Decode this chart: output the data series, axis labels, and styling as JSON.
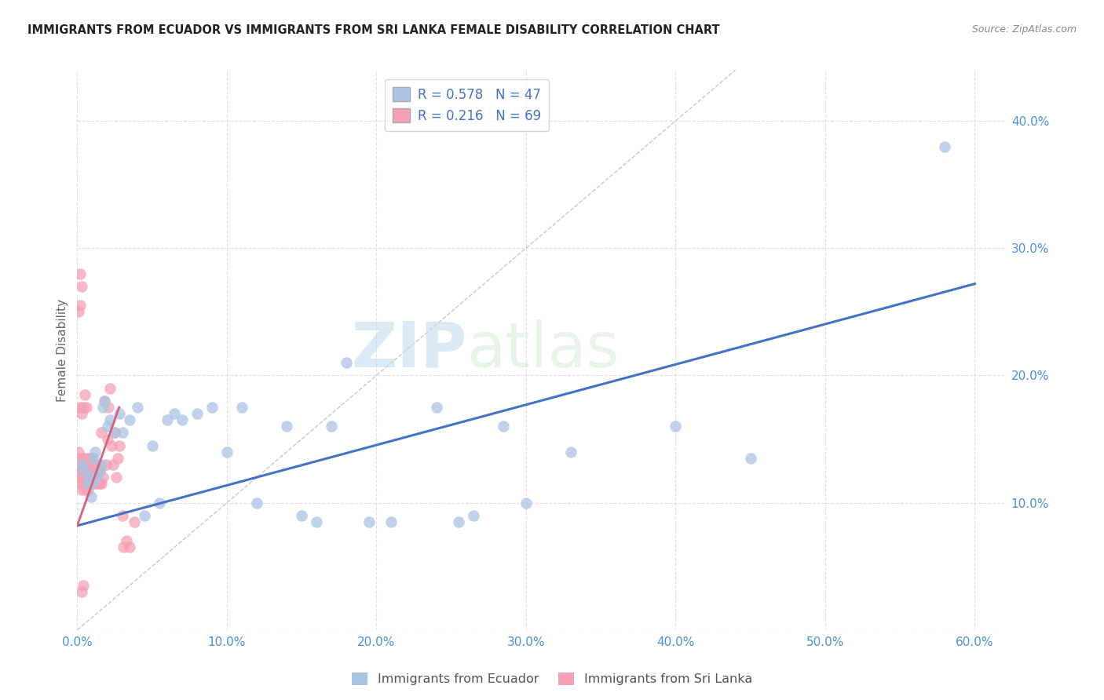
{
  "title": "IMMIGRANTS FROM ECUADOR VS IMMIGRANTS FROM SRI LANKA FEMALE DISABILITY CORRELATION CHART",
  "source": "Source: ZipAtlas.com",
  "ylabel": "Female Disability",
  "xlim": [
    0.0,
    0.62
  ],
  "ylim": [
    0.0,
    0.44
  ],
  "xticks": [
    0.0,
    0.1,
    0.2,
    0.3,
    0.4,
    0.5,
    0.6
  ],
  "yticks": [
    0.0,
    0.1,
    0.2,
    0.3,
    0.4
  ],
  "xtick_labels": [
    "0.0%",
    "10.0%",
    "20.0%",
    "30.0%",
    "40.0%",
    "50.0%",
    "60.0%"
  ],
  "ytick_labels": [
    "",
    "10.0%",
    "20.0%",
    "30.0%",
    "40.0%"
  ],
  "ecuador_color": "#aac4e2",
  "srilanka_color": "#f5a0b5",
  "ecuador_line_color": "#4472c4",
  "srilanka_line_color": "#d9607a",
  "diagonal_color": "#c8c8c8",
  "R_ecuador": 0.578,
  "N_ecuador": 47,
  "R_srilanka": 0.216,
  "N_srilanka": 69,
  "watermark_zip": "ZIP",
  "watermark_atlas": "atlas",
  "legend_ecuador": "Immigrants from Ecuador",
  "legend_srilanka": "Immigrants from Sri Lanka",
  "ecuador_line_x0": 0.0,
  "ecuador_line_y0": 0.082,
  "ecuador_line_x1": 0.6,
  "ecuador_line_y1": 0.272,
  "srilanka_line_x0": 0.0,
  "srilanka_line_y0": 0.082,
  "srilanka_line_x1": 0.028,
  "srilanka_line_y1": 0.175,
  "ecuador_x": [
    0.003,
    0.005,
    0.007,
    0.008,
    0.009,
    0.01,
    0.011,
    0.012,
    0.013,
    0.015,
    0.016,
    0.017,
    0.018,
    0.02,
    0.022,
    0.025,
    0.028,
    0.03,
    0.035,
    0.04,
    0.045,
    0.05,
    0.055,
    0.06,
    0.065,
    0.07,
    0.08,
    0.09,
    0.1,
    0.11,
    0.12,
    0.14,
    0.15,
    0.16,
    0.17,
    0.18,
    0.195,
    0.21,
    0.24,
    0.255,
    0.265,
    0.285,
    0.3,
    0.33,
    0.4,
    0.45,
    0.58
  ],
  "ecuador_y": [
    0.13,
    0.125,
    0.115,
    0.12,
    0.105,
    0.115,
    0.135,
    0.14,
    0.12,
    0.125,
    0.13,
    0.175,
    0.18,
    0.16,
    0.165,
    0.155,
    0.17,
    0.155,
    0.165,
    0.175,
    0.09,
    0.145,
    0.1,
    0.165,
    0.17,
    0.165,
    0.17,
    0.175,
    0.14,
    0.175,
    0.1,
    0.16,
    0.09,
    0.085,
    0.16,
    0.21,
    0.085,
    0.085,
    0.175,
    0.085,
    0.09,
    0.16,
    0.1,
    0.14,
    0.16,
    0.135,
    0.38
  ],
  "srilanka_x": [
    0.001,
    0.001,
    0.001,
    0.002,
    0.002,
    0.002,
    0.002,
    0.003,
    0.003,
    0.003,
    0.003,
    0.004,
    0.004,
    0.004,
    0.004,
    0.005,
    0.005,
    0.005,
    0.005,
    0.006,
    0.006,
    0.006,
    0.006,
    0.007,
    0.007,
    0.007,
    0.008,
    0.008,
    0.008,
    0.009,
    0.009,
    0.01,
    0.01,
    0.01,
    0.011,
    0.011,
    0.012,
    0.012,
    0.013,
    0.013,
    0.014,
    0.014,
    0.015,
    0.015,
    0.016,
    0.016,
    0.017,
    0.018,
    0.019,
    0.02,
    0.021,
    0.022,
    0.023,
    0.024,
    0.025,
    0.026,
    0.027,
    0.028,
    0.03,
    0.031,
    0.033,
    0.035,
    0.038,
    0.001,
    0.002,
    0.003,
    0.004,
    0.002,
    0.003
  ],
  "srilanka_y": [
    0.12,
    0.13,
    0.14,
    0.115,
    0.125,
    0.135,
    0.175,
    0.11,
    0.12,
    0.13,
    0.17,
    0.115,
    0.125,
    0.135,
    0.175,
    0.11,
    0.12,
    0.13,
    0.185,
    0.115,
    0.125,
    0.135,
    0.175,
    0.11,
    0.12,
    0.13,
    0.115,
    0.125,
    0.135,
    0.12,
    0.13,
    0.115,
    0.125,
    0.135,
    0.12,
    0.13,
    0.115,
    0.125,
    0.12,
    0.13,
    0.115,
    0.125,
    0.115,
    0.125,
    0.115,
    0.155,
    0.12,
    0.18,
    0.13,
    0.15,
    0.175,
    0.19,
    0.145,
    0.13,
    0.155,
    0.12,
    0.135,
    0.145,
    0.09,
    0.065,
    0.07,
    0.065,
    0.085,
    0.25,
    0.255,
    0.03,
    0.035,
    0.28,
    0.27
  ]
}
